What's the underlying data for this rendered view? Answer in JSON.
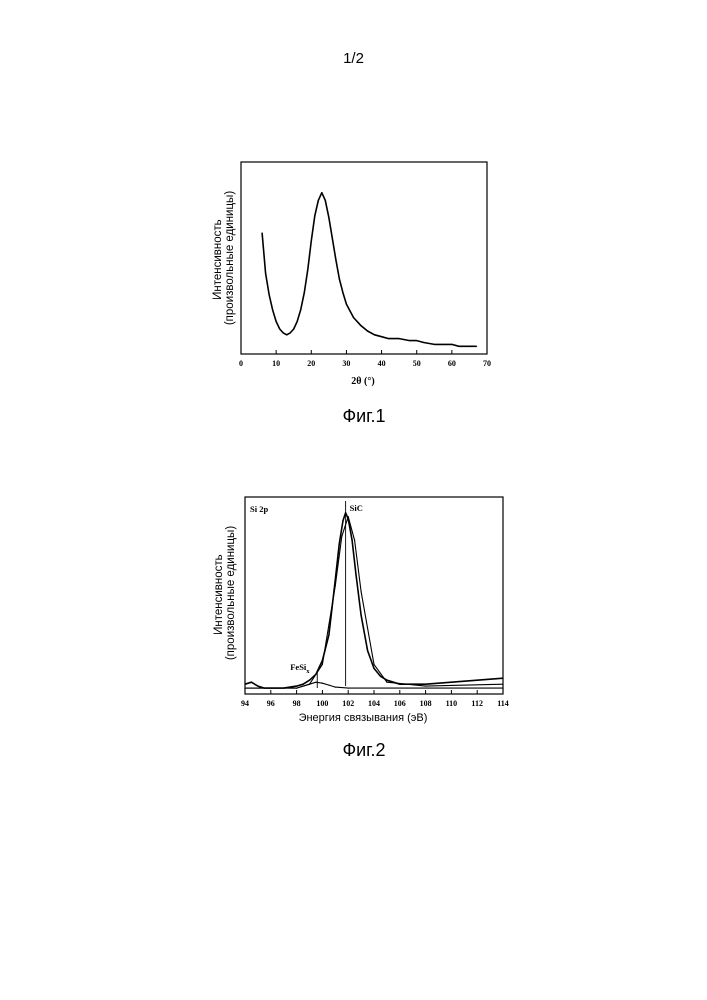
{
  "page_number": "1/2",
  "chart_data": [
    {
      "type": "line",
      "caption": "Фиг.1",
      "xlabel": "2θ (°)",
      "ylabel": "Интенсивность (произвольные единицы)",
      "xlim": [
        0,
        70
      ],
      "xticks": [
        0,
        10,
        20,
        30,
        40,
        50,
        60,
        70
      ],
      "yticks_labeled": false,
      "grid": false,
      "series": [
        {
          "x": [
            6,
            7,
            8,
            9,
            10,
            11,
            12,
            13,
            14,
            15,
            16,
            17,
            18,
            19,
            20,
            21,
            22,
            23,
            24,
            25,
            26,
            27,
            28,
            29,
            30,
            32,
            34,
            36,
            38,
            40,
            42,
            45,
            48,
            50,
            52,
            55,
            58,
            60,
            62,
            65,
            67
          ],
          "y": [
            0.63,
            0.42,
            0.31,
            0.23,
            0.17,
            0.13,
            0.11,
            0.1,
            0.11,
            0.13,
            0.17,
            0.23,
            0.32,
            0.44,
            0.59,
            0.72,
            0.8,
            0.84,
            0.8,
            0.71,
            0.6,
            0.49,
            0.39,
            0.32,
            0.26,
            0.19,
            0.15,
            0.12,
            0.1,
            0.09,
            0.08,
            0.08,
            0.07,
            0.07,
            0.06,
            0.05,
            0.05,
            0.05,
            0.04,
            0.04,
            0.04
          ]
        }
      ]
    },
    {
      "type": "line",
      "caption": "Фиг.2",
      "panel_label": "Si 2p",
      "xlabel": "Энергия связывания (эВ)",
      "ylabel": "Интенсивность (произвольные единицы)",
      "xlim": [
        94,
        114
      ],
      "xticks": [
        94,
        96,
        98,
        100,
        102,
        104,
        106,
        108,
        110,
        112,
        114
      ],
      "yticks_labeled": false,
      "grid": false,
      "series": [
        {
          "x": [
            94,
            94.5,
            95,
            95.5,
            96,
            97,
            98,
            98.5,
            99,
            99.5,
            100,
            100.5,
            101,
            101.3,
            101.6,
            101.8,
            102,
            102.3,
            102.6,
            103,
            103.5,
            104,
            104.5,
            105,
            106,
            108,
            110,
            112,
            114
          ],
          "y": [
            0.05,
            0.06,
            0.04,
            0.03,
            0.03,
            0.03,
            0.04,
            0.05,
            0.07,
            0.1,
            0.17,
            0.3,
            0.58,
            0.76,
            0.88,
            0.92,
            0.89,
            0.78,
            0.61,
            0.4,
            0.22,
            0.13,
            0.09,
            0.07,
            0.05,
            0.05,
            0.06,
            0.07,
            0.08
          ]
        },
        {
          "x": [
            94,
            98,
            99,
            100,
            101,
            101.5,
            102,
            102.5,
            103,
            104,
            105,
            108,
            114
          ],
          "y": [
            0.03,
            0.03,
            0.05,
            0.15,
            0.55,
            0.8,
            0.9,
            0.78,
            0.52,
            0.15,
            0.06,
            0.04,
            0.05
          ]
        },
        {
          "x": [
            94,
            98,
            99,
            99.5,
            100,
            100.5,
            101,
            102,
            114
          ],
          "y": [
            0.03,
            0.03,
            0.05,
            0.06,
            0.055,
            0.045,
            0.035,
            0.03,
            0.03
          ]
        }
      ],
      "annotations": [
        {
          "text": "SiC",
          "x": 101.8
        },
        {
          "text": "FeSi",
          "subscript": "x",
          "x": 99.6
        }
      ]
    }
  ]
}
